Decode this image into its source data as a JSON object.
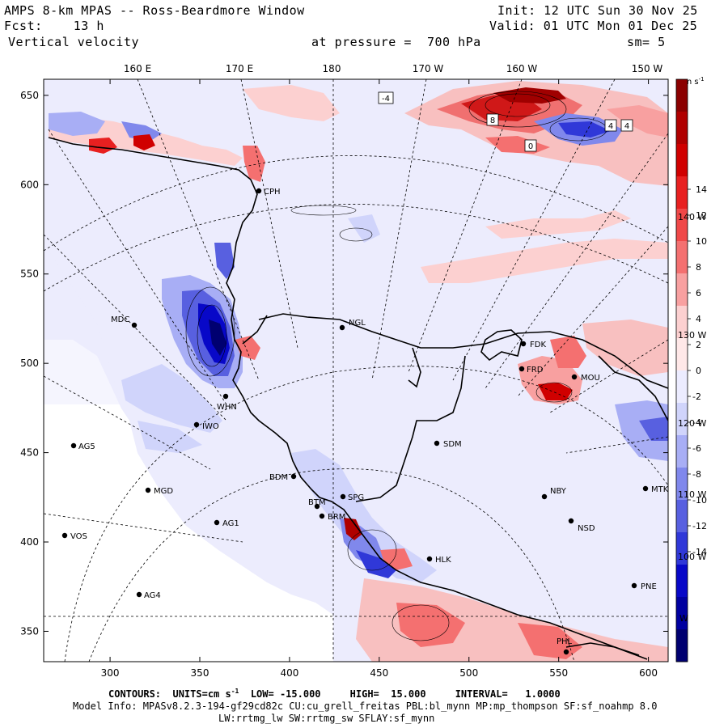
{
  "header": {
    "title": "AMPS 8-km MPAS -- Ross-Beardmore Window",
    "init": "Init: 12 UTC Sun 30 Nov 25",
    "fcst": "Fcst:    13 h",
    "valid": "Valid: 01 UTC Mon 01 Dec 25",
    "field": "Vertical velocity",
    "level": "at pressure =  700 hPa",
    "smoothing": "sm= 5"
  },
  "axes": {
    "x_ticks": [
      "300",
      "350",
      "400",
      "450",
      "500",
      "550",
      "600"
    ],
    "y_ticks": [
      "650",
      "600",
      "550",
      "500",
      "450",
      "400",
      "350"
    ],
    "lon_labels": [
      "160 E",
      "170 E",
      "180",
      "170 W",
      "160 W",
      "150 W"
    ],
    "right_lon_labels": [
      "140 W",
      "130 W",
      "120 W",
      "110 W",
      "100 W",
      "W"
    ]
  },
  "colorbar": {
    "units": "cm s",
    "units_exp": "-1",
    "labels": [
      "14",
      "12",
      "10",
      "8",
      "6",
      "4",
      "2",
      "0",
      "-2",
      "-4",
      "-6",
      "-8",
      "-10",
      "-12",
      "-14"
    ],
    "colors": [
      "#8b0000",
      "#b00000",
      "#d00000",
      "#e82020",
      "#f04848",
      "#f47070",
      "#f8a0a0",
      "#fcd0d0",
      "#ffe8e8",
      "#ececff",
      "#d0d4fb",
      "#a8aef5",
      "#8088ec",
      "#5860e0",
      "#3038d8",
      "#0808c8",
      "#0000a0",
      "#000070"
    ]
  },
  "stations": [
    {
      "name": "CPH"
    },
    {
      "name": "NGL"
    },
    {
      "name": "MDC"
    },
    {
      "name": "FDK"
    },
    {
      "name": "FRD"
    },
    {
      "name": "MOU"
    },
    {
      "name": "WHN"
    },
    {
      "name": "IWO"
    },
    {
      "name": "SDM"
    },
    {
      "name": "AG5"
    },
    {
      "name": "BDM"
    },
    {
      "name": "NBY"
    },
    {
      "name": "MGD"
    },
    {
      "name": "SPG"
    },
    {
      "name": "MTK"
    },
    {
      "name": "BTM"
    },
    {
      "name": "BRM"
    },
    {
      "name": "AG1"
    },
    {
      "name": "NSD"
    },
    {
      "name": "VOS"
    },
    {
      "name": "HLK"
    },
    {
      "name": "PNE"
    },
    {
      "name": "AG4"
    },
    {
      "name": "PHL"
    }
  ],
  "contour_labels": [
    "-4",
    "8",
    "0",
    "4",
    "4"
  ],
  "footer": {
    "contours_label": "CONTOURS:",
    "units_label": "UNITS=cm s",
    "units_exp": "-1",
    "low": "LOW= -15.000",
    "high": "HIGH=  15.000",
    "interval": "INTERVAL=   1.0000",
    "model_info": "Model Info: MPASv8.2.3-194-gf29cd82c CU:cu_grell_freitas PBL:bl_mynn MP:mp_thompson SF:sf_noahmp 8.0",
    "model_info2": "LW:rrtmg_lw SW:rrtmg_sw SFLAY:sf_mynn"
  }
}
